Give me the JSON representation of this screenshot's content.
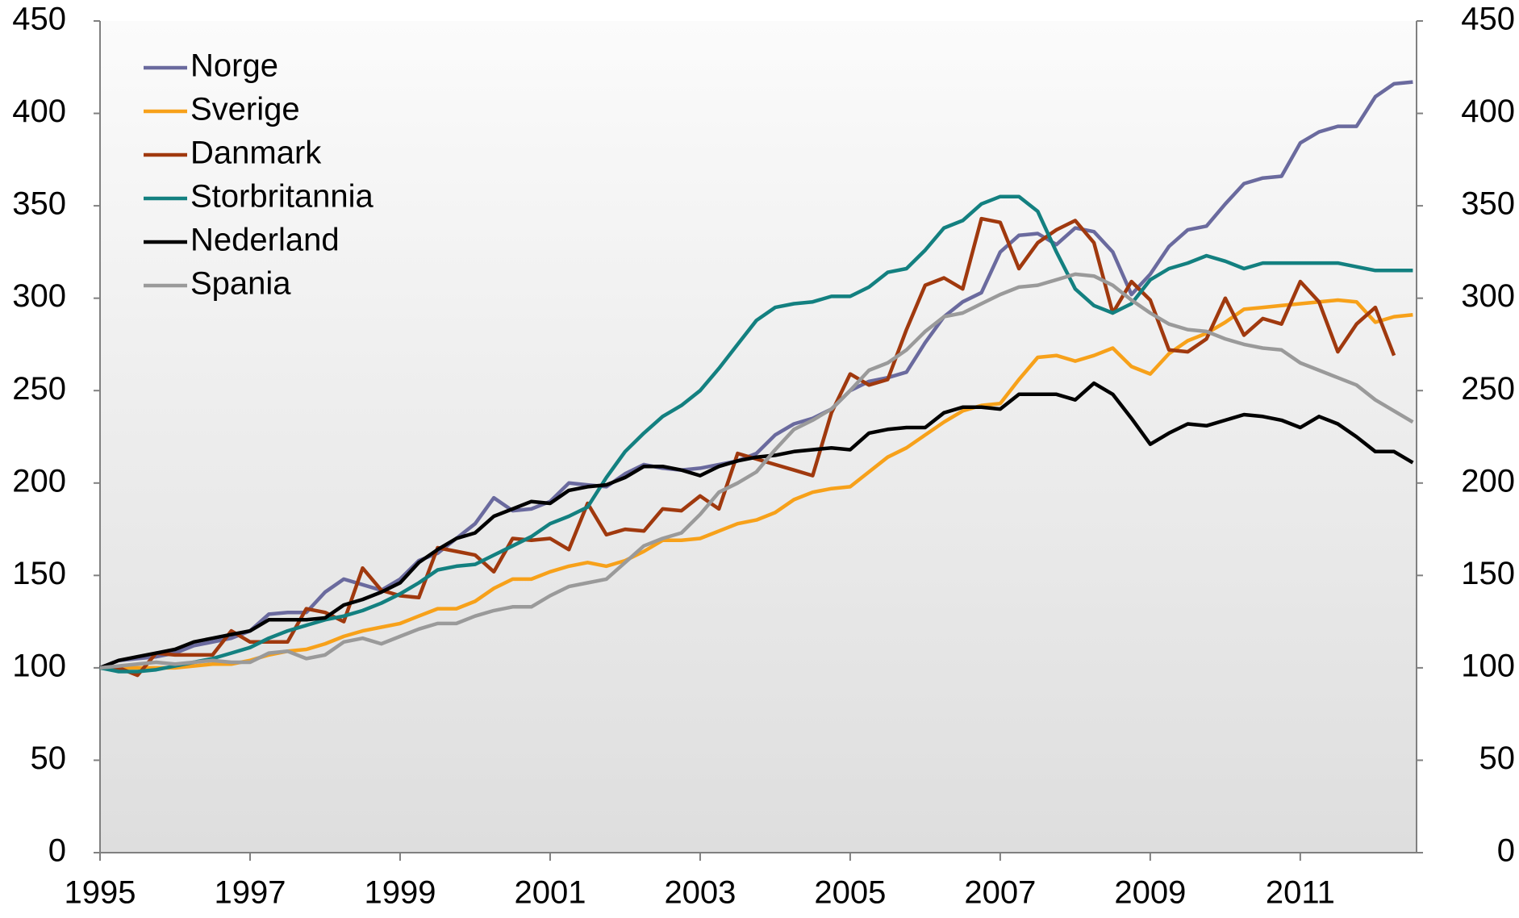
{
  "chart_data": {
    "type": "line",
    "x": [
      1995,
      1995.25,
      1995.5,
      1995.75,
      1996,
      1996.25,
      1996.5,
      1996.75,
      1997,
      1997.25,
      1997.5,
      1997.75,
      1998,
      1998.25,
      1998.5,
      1998.75,
      1999,
      1999.25,
      1999.5,
      1999.75,
      2000,
      2000.25,
      2000.5,
      2000.75,
      2001,
      2001.25,
      2001.5,
      2001.75,
      2002,
      2002.25,
      2002.5,
      2002.75,
      2003,
      2003.25,
      2003.5,
      2003.75,
      2004,
      2004.25,
      2004.5,
      2004.75,
      2005,
      2005.25,
      2005.5,
      2005.75,
      2006,
      2006.25,
      2006.5,
      2006.75,
      2007,
      2007.25,
      2007.5,
      2007.75,
      2008,
      2008.25,
      2008.5,
      2008.75,
      2009,
      2009.25,
      2009.5,
      2009.75,
      2010,
      2010.25,
      2010.5,
      2010.75,
      2011,
      2011.25,
      2011.5,
      2011.75,
      2012,
      2012.25,
      2012.5
    ],
    "series": [
      {
        "name": "Norge",
        "color": "#6a6a9e",
        "values": [
          100,
          104,
          105,
          106,
          108,
          112,
          114,
          116,
          120,
          129,
          130,
          130,
          141,
          148,
          145,
          142,
          148,
          158,
          162,
          170,
          178,
          192,
          185,
          186,
          190,
          200,
          199,
          198,
          205,
          210,
          208,
          207,
          208,
          210,
          212,
          216,
          226,
          232,
          235,
          240,
          250,
          255,
          257,
          260,
          276,
          290,
          298,
          303,
          325,
          334,
          335,
          329,
          338,
          336,
          325,
          302,
          313,
          328,
          337,
          339,
          351,
          362,
          365,
          366,
          384,
          390,
          393,
          393,
          409,
          416,
          417
        ]
      },
      {
        "name": "Sverige",
        "color": "#f7a11a",
        "values": [
          100,
          100,
          100,
          100,
          100,
          101,
          102,
          102,
          104,
          107,
          109,
          110,
          113,
          117,
          120,
          122,
          124,
          128,
          132,
          132,
          136,
          143,
          148,
          148,
          152,
          155,
          157,
          155,
          158,
          163,
          169,
          169,
          170,
          174,
          178,
          180,
          184,
          191,
          195,
          197,
          198,
          206,
          214,
          219,
          226,
          233,
          239,
          242,
          243,
          256,
          268,
          269,
          266,
          269,
          273,
          263,
          259,
          270,
          277,
          281,
          287,
          294,
          295,
          296,
          297,
          298,
          299,
          298,
          287,
          290,
          291
        ]
      },
      {
        "name": "Danmark",
        "color": "#a0390e",
        "values": [
          100,
          100,
          96,
          108,
          107,
          107,
          107,
          120,
          114,
          114,
          114,
          132,
          130,
          125,
          154,
          142,
          139,
          138,
          165,
          163,
          161,
          152,
          170,
          169,
          170,
          164,
          189,
          172,
          175,
          174,
          186,
          185,
          193,
          186,
          216,
          213,
          210,
          207,
          204,
          238,
          259,
          253,
          256,
          283,
          307,
          311,
          305,
          343,
          341,
          316,
          330,
          337,
          342,
          330,
          292,
          309,
          299,
          272,
          271,
          278,
          300,
          280,
          289,
          286,
          309,
          298,
          271,
          286,
          295,
          269,
          null
        ]
      },
      {
        "name": "Storbritannia",
        "color": "#138080",
        "values": [
          100,
          98,
          98,
          99,
          101,
          103,
          105,
          108,
          111,
          116,
          120,
          123,
          126,
          128,
          131,
          135,
          140,
          146,
          153,
          155,
          156,
          161,
          166,
          171,
          178,
          182,
          187,
          203,
          217,
          227,
          236,
          242,
          250,
          262,
          275,
          288,
          295,
          297,
          298,
          301,
          301,
          306,
          314,
          316,
          326,
          338,
          342,
          351,
          355,
          355,
          347,
          325,
          305,
          296,
          292,
          297,
          310,
          316,
          319,
          323,
          320,
          316,
          319,
          319,
          319,
          319,
          319,
          317,
          315,
          315,
          315
        ]
      },
      {
        "name": "Nederland",
        "color": "#000000",
        "values": [
          100,
          104,
          106,
          108,
          110,
          114,
          116,
          118,
          120,
          126,
          126,
          126,
          127,
          134,
          137,
          141,
          146,
          157,
          164,
          170,
          173,
          182,
          186,
          190,
          189,
          196,
          198,
          199,
          203,
          209,
          209,
          207,
          204,
          209,
          212,
          214,
          215,
          217,
          218,
          219,
          218,
          227,
          229,
          230,
          230,
          238,
          241,
          241,
          240,
          248,
          248,
          248,
          245,
          254,
          248,
          235,
          221,
          227,
          232,
          231,
          234,
          237,
          236,
          234,
          230,
          236,
          232,
          225,
          217,
          217,
          211
        ]
      },
      {
        "name": "Spania",
        "color": "#9a9a9a",
        "values": [
          100,
          101,
          102,
          103,
          102,
          103,
          104,
          103,
          103,
          108,
          109,
          105,
          107,
          114,
          116,
          113,
          117,
          121,
          124,
          124,
          128,
          131,
          133,
          133,
          139,
          144,
          146,
          148,
          157,
          166,
          170,
          173,
          183,
          195,
          200,
          206,
          218,
          229,
          234,
          240,
          250,
          261,
          265,
          272,
          282,
          290,
          292,
          297,
          302,
          306,
          307,
          310,
          313,
          312,
          307,
          299,
          292,
          286,
          283,
          282,
          278,
          275,
          273,
          272,
          265,
          261,
          257,
          253,
          245,
          239,
          233
        ]
      }
    ],
    "xlim": [
      1995,
      2012.55
    ],
    "xticks": [
      1995,
      1997,
      1999,
      2001,
      2003,
      2005,
      2007,
      2009,
      2011
    ],
    "ylim": [
      0,
      450
    ],
    "yticks": [
      0,
      50,
      100,
      150,
      200,
      250,
      300,
      350,
      400,
      450
    ],
    "legend": "top-left"
  }
}
